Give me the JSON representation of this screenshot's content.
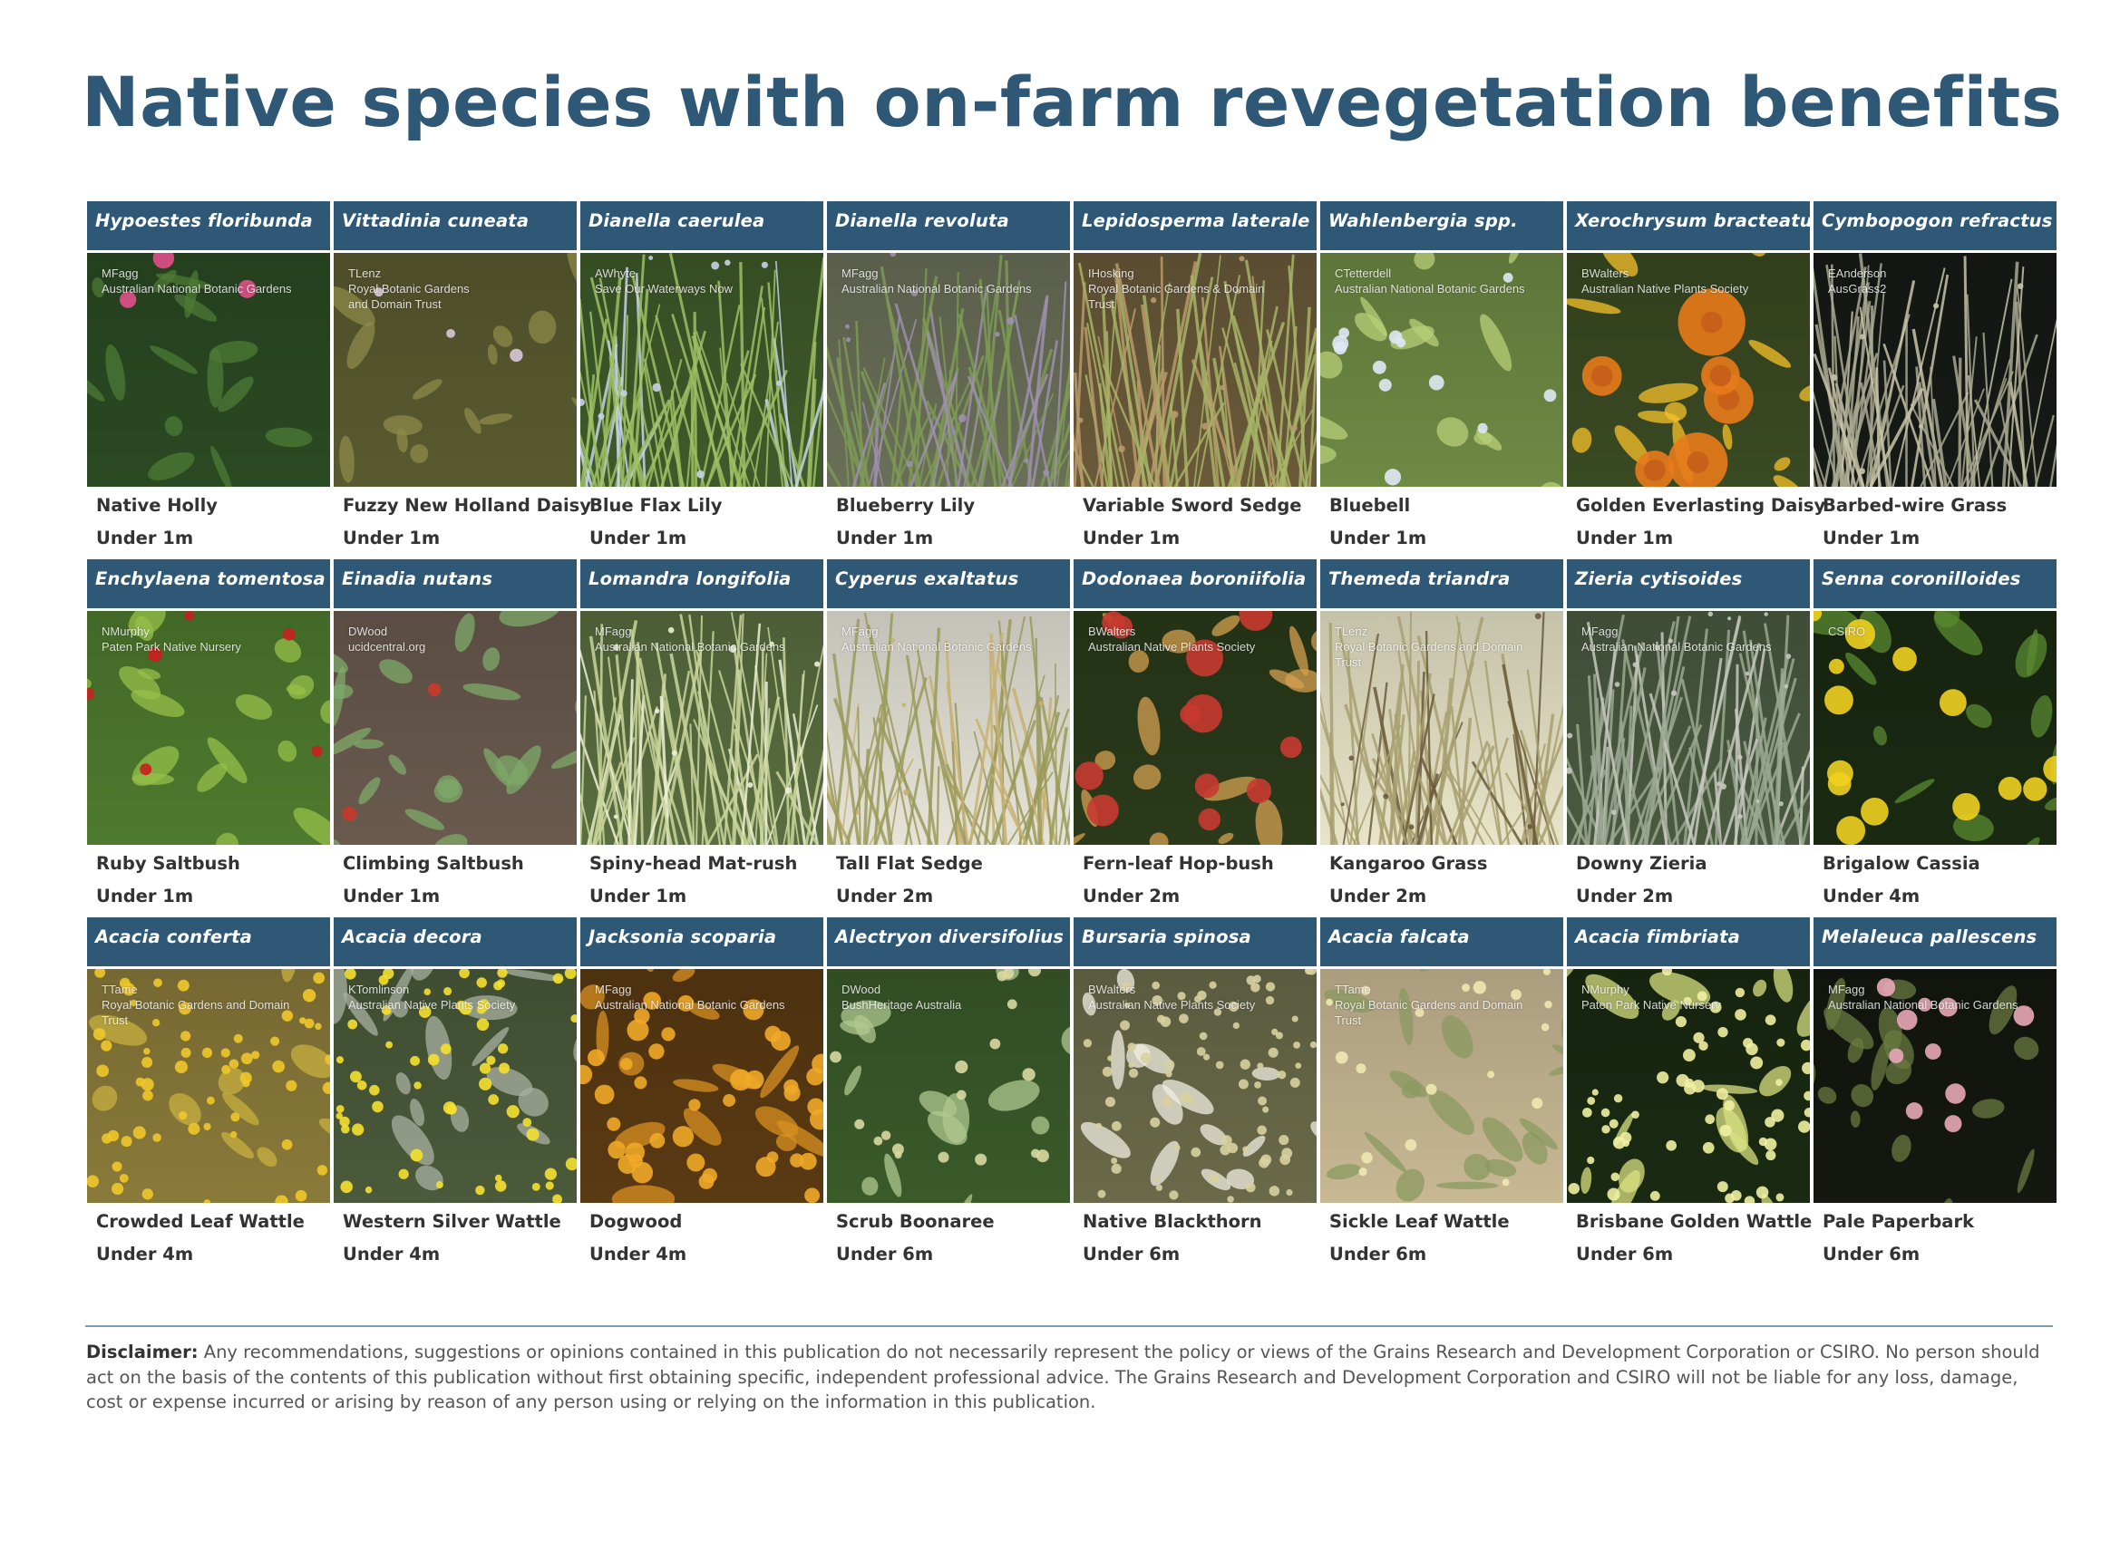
{
  "title": "Native species with on-farm revegetation benefits",
  "species": [
    {
      "scientific": "Hypoestes floribunda",
      "common": "Native Holly",
      "height": "Under 1m",
      "credit": "MFagg\nAustralian National Botanic Gardens",
      "palette": {
        "bg": "#2a4a22",
        "fg": "#4e7a36",
        "accent": "#e0508a"
      },
      "pattern": "leaves"
    },
    {
      "scientific": "Vittadinia cuneata",
      "common": "Fuzzy New Holland Daisy",
      "height": "Under 1m",
      "credit": "TLenz\nRoyal Botanic Gardens\nand Domain Trust",
      "palette": {
        "bg": "#5a5a30",
        "fg": "#8d8a4a",
        "accent": "#d9c8d8"
      },
      "pattern": "scrub"
    },
    {
      "scientific": "Dianella caerulea",
      "common": "Blue Flax Lily",
      "height": "Under 1m",
      "credit": "AWhyte\nSave Our Waterways Now",
      "palette": {
        "bg": "#3f5a2a",
        "fg": "#9cbf64",
        "accent": "#c7d2e8"
      },
      "pattern": "grass"
    },
    {
      "scientific": "Dianella revoluta",
      "common": "Blueberry Lily",
      "height": "Under 1m",
      "credit": "MFagg\nAustralian National Botanic Gardens",
      "palette": {
        "bg": "#6a6f58",
        "fg": "#7d9a55",
        "accent": "#9f8fb0"
      },
      "pattern": "grass"
    },
    {
      "scientific": "Lepidosperma laterale",
      "common": "Variable Sword Sedge",
      "height": "Under 1m",
      "credit": "IHosking\nRoyal Botanic Gardens & Domain\nTrust",
      "palette": {
        "bg": "#6a5a3a",
        "fg": "#a7b466",
        "accent": "#b89a6a"
      },
      "pattern": "grass"
    },
    {
      "scientific": "Wahlenbergia spp.",
      "common": "Bluebell",
      "height": "Under 1m",
      "credit": "CTetterdell\nAustralian National Botanic Gardens",
      "palette": {
        "bg": "#6e8a44",
        "fg": "#b8cf78",
        "accent": "#dfe8f5"
      },
      "pattern": "stars"
    },
    {
      "scientific": "Xerochrysum bracteatum",
      "common": "Golden Everlasting Daisy",
      "height": "Under 1m",
      "credit": "BWalters\nAustralian Native Plants Society",
      "palette": {
        "bg": "#3a4a22",
        "fg": "#f5c22a",
        "accent": "#e87a1a"
      },
      "pattern": "daisies"
    },
    {
      "scientific": "Cymbopogon refractus",
      "common": "Barbed-wire Grass",
      "height": "Under 1m",
      "credit": "EAnderson\nAusGrass2",
      "palette": {
        "bg": "#161a16",
        "fg": "#a8a890",
        "accent": "#c9c4a8"
      },
      "pattern": "dark-grass"
    },
    {
      "scientific": "Enchylaena tomentosa",
      "common": "Ruby Saltbush",
      "height": "Under 1m",
      "credit": "NMurphy\nPaten Park Native Nursery",
      "palette": {
        "bg": "#4e7a2e",
        "fg": "#96c04a",
        "accent": "#c8201e"
      },
      "pattern": "berries"
    },
    {
      "scientific": "Einadia nutans",
      "common": "Climbing Saltbush",
      "height": "Under 1m",
      "credit": "DWood\nucidcentral.org",
      "palette": {
        "bg": "#6a5a4e",
        "fg": "#7eaa6a",
        "accent": "#c83a2a"
      },
      "pattern": "leaves-round"
    },
    {
      "scientific": "Lomandra longifolia",
      "common": "Spiny-head Mat-rush",
      "height": "Under 1m",
      "credit": "MFagg\nAustralian National Botanic Gardens",
      "palette": {
        "bg": "#5a6e40",
        "fg": "#c9d59a",
        "accent": "#eef0d8"
      },
      "pattern": "grass"
    },
    {
      "scientific": "Cyperus exaltatus",
      "common": "Tall Flat Sedge",
      "height": "Under 2m",
      "credit": "MFagg\nAustralian National Botanic Gardens",
      "palette": {
        "bg": "#e6e4d8",
        "fg": "#9a9a5a",
        "accent": "#c8b070"
      },
      "pattern": "light-grass"
    },
    {
      "scientific": "Dodonaea boroniifolia",
      "common": "Fern-leaf Hop-bush",
      "height": "Under 2m",
      "credit": "BWalters\nAustralian Native Plants Society",
      "palette": {
        "bg": "#2a3a1a",
        "fg": "#d4a050",
        "accent": "#c83a30"
      },
      "pattern": "pods"
    },
    {
      "scientific": "Themeda triandra",
      "common": "Kangaroo Grass",
      "height": "Under 2m",
      "credit": "TLenz\nRoyal Botanic Gardens and Domain\nTrust",
      "palette": {
        "bg": "#e8e4c8",
        "fg": "#a8a070",
        "accent": "#6a5a3a"
      },
      "pattern": "light-grass"
    },
    {
      "scientific": "Zieria cytisoides",
      "common": "Downy Zieria",
      "height": "Under 2m",
      "credit": "MFagg\nAustralian National Botanic Gardens",
      "palette": {
        "bg": "#4a5a40",
        "fg": "#9aa890",
        "accent": "#c8c8c0"
      },
      "pattern": "shrub"
    },
    {
      "scientific": "Senna coronilloides",
      "common": "Brigalow Cassia",
      "height": "Under 4m",
      "credit": "CSIRO",
      "palette": {
        "bg": "#1a2a12",
        "fg": "#5a8a30",
        "accent": "#f0d020"
      },
      "pattern": "yellow-flowers"
    },
    {
      "scientific": "Acacia conferta",
      "common": "Crowded Leaf Wattle",
      "height": "Under 4m",
      "credit": "TTame\nRoyal Botanic Gardens and Domain\nTrust",
      "palette": {
        "bg": "#8a7a3a",
        "fg": "#c8b040",
        "accent": "#f0c82a"
      },
      "pattern": "wattle"
    },
    {
      "scientific": "Acacia decora",
      "common": "Western Silver Wattle",
      "height": "Under 4m",
      "credit": "KTomlinson\nAustralian Native Plants Society",
      "palette": {
        "bg": "#4a5a3a",
        "fg": "#a8b0a0",
        "accent": "#f5e030"
      },
      "pattern": "wattle"
    },
    {
      "scientific": "Jacksonia scoparia",
      "common": "Dogwood",
      "height": "Under 4m",
      "credit": "MFagg\nAustralian National Botanic Gardens",
      "palette": {
        "bg": "#5a3a12",
        "fg": "#d89020",
        "accent": "#f0a828"
      },
      "pattern": "orange-flowers"
    },
    {
      "scientific": "Alectryon diversifolius",
      "common": "Scrub Boonaree",
      "height": "Under 6m",
      "credit": "DWood\nBushHeritage Australia",
      "palette": {
        "bg": "#3a5a2a",
        "fg": "#b0c890",
        "accent": "#d8d8a0"
      },
      "pattern": "branches"
    },
    {
      "scientific": "Bursaria spinosa",
      "common": "Native Blackthorn",
      "height": "Under 6m",
      "credit": "BWalters\nAustralian Native Plants Society",
      "palette": {
        "bg": "#6a6a4a",
        "fg": "#f0eee0",
        "accent": "#d8d0a0"
      },
      "pattern": "white-flowers"
    },
    {
      "scientific": "Acacia falcata",
      "common": "Sickle Leaf Wattle",
      "height": "Under 6m",
      "credit": "TTame\nRoyal Botanic Gardens and Domain\nTrust",
      "palette": {
        "bg": "#c8b894",
        "fg": "#8a9a60",
        "accent": "#f0e8b0"
      },
      "pattern": "branches"
    },
    {
      "scientific": "Acacia fimbriata",
      "common": "Brisbane Golden Wattle",
      "height": "Under 6m",
      "credit": "NMurphy\nPaten Park Native Nursery",
      "palette": {
        "bg": "#1a2a12",
        "fg": "#d8e080",
        "accent": "#f0f0a0"
      },
      "pattern": "wattle"
    },
    {
      "scientific": "Melaleuca pallescens",
      "common": "Pale Paperbark",
      "height": "Under 6m",
      "credit": "MFagg\nAustralian National Botanic Gardens",
      "palette": {
        "bg": "#141810",
        "fg": "#6a7a40",
        "accent": "#e8a8b8"
      },
      "pattern": "pink-puffs"
    }
  ],
  "disclaimer": {
    "label": "Disclaimer:",
    "text": "Any recommendations, suggestions or opinions contained in this publication do not necessarily represent the policy or views of the Grains Research and Development Corporation or CSIRO. No person should act on the basis of the contents of this publication without first obtaining specific, independent professional advice. The Grains Research and Development Corporation and CSIRO will not be liable for any loss, damage, cost or expense incurred or arising by reason of any person using or relying on the information in this publication."
  }
}
